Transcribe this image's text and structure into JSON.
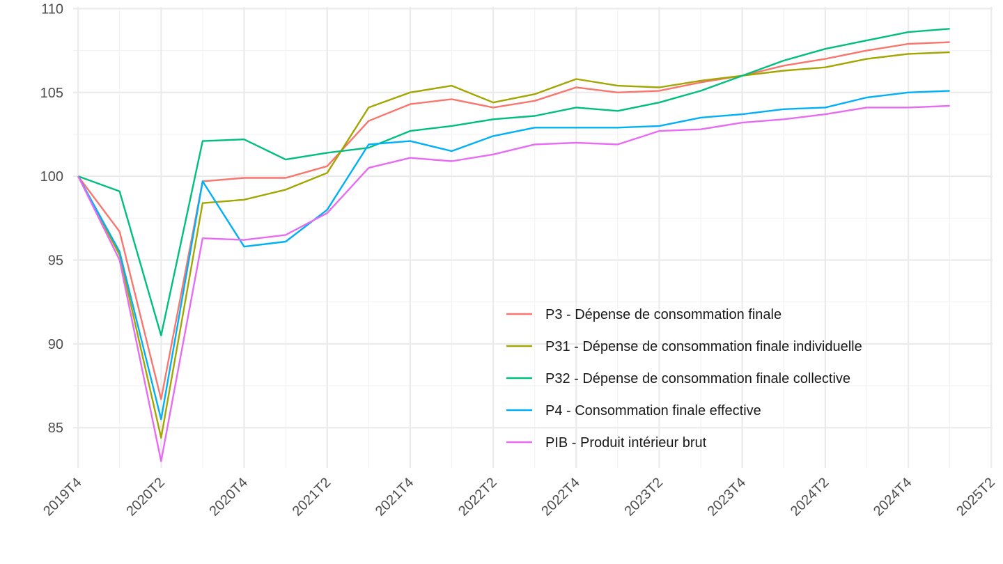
{
  "chart_data": {
    "type": "line",
    "title": "",
    "xlabel": "",
    "ylabel": "",
    "x_type": "quarter",
    "x": [
      "2019T4",
      "2020T1",
      "2020T2",
      "2020T3",
      "2020T4",
      "2021T1",
      "2021T2",
      "2021T3",
      "2021T4",
      "2022T1",
      "2022T2",
      "2022T3",
      "2022T4",
      "2023T1",
      "2023T2",
      "2023T3",
      "2023T4",
      "2024T1",
      "2024T2",
      "2024T3",
      "2024T4",
      "2025T1"
    ],
    "x_ticks": [
      "2019T4",
      "2020T2",
      "2020T4",
      "2021T2",
      "2021T4",
      "2022T2",
      "2022T4",
      "2023T2",
      "2023T4",
      "2024T2",
      "2024T4",
      "2025T2"
    ],
    "xlim": [
      "2019T4",
      "2025T2"
    ],
    "y_ticks": [
      85,
      90,
      95,
      100,
      105,
      110
    ],
    "ylim": [
      82.6,
      110.1
    ],
    "grid": true,
    "legend_position": "inside-bottom-right",
    "series": [
      {
        "name": "P3 - Dépense de consommation finale",
        "color": "#F8766D",
        "values": [
          100,
          96.7,
          86.7,
          99.7,
          99.9,
          99.9,
          100.6,
          103.3,
          104.3,
          104.6,
          104.1,
          104.5,
          105.3,
          105.0,
          105.1,
          105.6,
          106.0,
          106.6,
          107.0,
          107.5,
          107.9,
          108.0
        ]
      },
      {
        "name": "P31 - Dépense de consommation finale individuelle",
        "color": "#A3A500",
        "values": [
          100,
          95.3,
          84.4,
          98.4,
          98.6,
          99.2,
          100.2,
          104.1,
          105.0,
          105.4,
          104.4,
          104.9,
          105.8,
          105.4,
          105.3,
          105.7,
          106.0,
          106.3,
          106.5,
          107.0,
          107.3,
          107.4
        ]
      },
      {
        "name": "P32 - Dépense de consommation finale collective",
        "color": "#00BF7D",
        "values": [
          100,
          99.1,
          90.5,
          102.1,
          102.2,
          101.0,
          101.4,
          101.7,
          102.7,
          103.0,
          103.4,
          103.6,
          104.1,
          103.9,
          104.4,
          105.1,
          106.0,
          106.9,
          107.6,
          108.1,
          108.6,
          108.8
        ]
      },
      {
        "name": "P4 - Consommation finale effective",
        "color": "#00B0F6",
        "values": [
          100,
          95.5,
          85.5,
          99.7,
          95.8,
          96.1,
          98.0,
          101.9,
          102.1,
          101.5,
          102.4,
          102.9,
          102.9,
          102.9,
          103.0,
          103.5,
          103.7,
          104.0,
          104.1,
          104.7,
          105.0,
          105.1
        ]
      },
      {
        "name": "PIB - Produit intérieur brut",
        "color": "#E76BF3",
        "values": [
          100,
          95.0,
          83.0,
          96.3,
          96.2,
          96.5,
          97.8,
          100.5,
          101.1,
          100.9,
          101.3,
          101.9,
          102.0,
          101.9,
          102.7,
          102.8,
          103.2,
          103.4,
          103.7,
          104.1,
          104.1,
          104.2
        ]
      }
    ]
  }
}
